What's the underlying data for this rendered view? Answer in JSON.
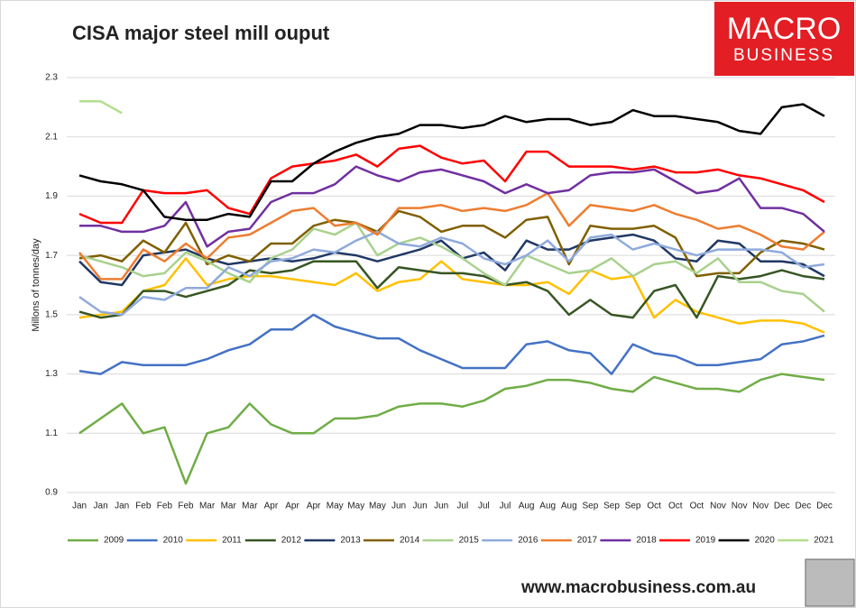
{
  "chart_data": {
    "type": "line",
    "title": "CISA major steel mill ouput",
    "y_label": "Millons of tonnes/day",
    "categories": [
      "Jan",
      "Jan",
      "Jan",
      "Feb",
      "Feb",
      "Feb",
      "Mar",
      "Mar",
      "Mar",
      "Apr",
      "Apr",
      "Apr",
      "May",
      "May",
      "May",
      "Jun",
      "Jun",
      "Jun",
      "Jul",
      "Jul",
      "Jul",
      "Aug",
      "Aug",
      "Aug",
      "Sep",
      "Sep",
      "Sep",
      "Oct",
      "Oct",
      "Oct",
      "Nov",
      "Nov",
      "Nov",
      "Dec",
      "Dec",
      "Dec"
    ],
    "ylim": [
      0.9,
      2.3
    ],
    "yticks": [
      0.9,
      1.1,
      1.3,
      1.5,
      1.7,
      1.9,
      2.1,
      2.3
    ],
    "grid": true,
    "legend": "bottom",
    "series": [
      {
        "name": "2009",
        "color": "#70ad47",
        "values": [
          1.1,
          1.15,
          1.2,
          1.1,
          1.12,
          0.93,
          1.1,
          1.12,
          1.2,
          1.13,
          1.1,
          1.1,
          1.15,
          1.15,
          1.16,
          1.19,
          1.2,
          1.2,
          1.19,
          1.21,
          1.25,
          1.26,
          1.28,
          1.28,
          1.27,
          1.25,
          1.24,
          1.29,
          1.27,
          1.25,
          1.25,
          1.24,
          1.28,
          1.3,
          1.29,
          1.28
        ]
      },
      {
        "name": "2010",
        "color": "#4472c4",
        "values": [
          1.31,
          1.3,
          1.34,
          1.33,
          1.33,
          1.33,
          1.35,
          1.38,
          1.4,
          1.45,
          1.45,
          1.5,
          1.46,
          1.44,
          1.42,
          1.42,
          1.38,
          1.35,
          1.32,
          1.32,
          1.32,
          1.4,
          1.41,
          1.38,
          1.37,
          1.3,
          1.4,
          1.37,
          1.36,
          1.33,
          1.33,
          1.34,
          1.35,
          1.4,
          1.41,
          1.43
        ]
      },
      {
        "name": "2011",
        "color": "#ffc000",
        "values": [
          1.49,
          1.5,
          1.51,
          1.58,
          1.6,
          1.69,
          1.6,
          1.62,
          1.63,
          1.63,
          1.62,
          1.61,
          1.6,
          1.64,
          1.58,
          1.61,
          1.62,
          1.68,
          1.62,
          1.61,
          1.6,
          1.6,
          1.61,
          1.57,
          1.65,
          1.62,
          1.63,
          1.49,
          1.55,
          1.51,
          1.49,
          1.47,
          1.48,
          1.48,
          1.47,
          1.44
        ]
      },
      {
        "name": "2012",
        "color": "#375623",
        "values": [
          1.51,
          1.49,
          1.5,
          1.58,
          1.58,
          1.56,
          1.58,
          1.6,
          1.65,
          1.64,
          1.65,
          1.68,
          1.68,
          1.68,
          1.59,
          1.66,
          1.65,
          1.64,
          1.64,
          1.63,
          1.6,
          1.61,
          1.58,
          1.5,
          1.55,
          1.5,
          1.49,
          1.58,
          1.6,
          1.49,
          1.63,
          1.62,
          1.63,
          1.65,
          1.63,
          1.62
        ]
      },
      {
        "name": "2013",
        "color": "#203864",
        "values": [
          1.68,
          1.61,
          1.6,
          1.7,
          1.71,
          1.72,
          1.69,
          1.67,
          1.68,
          1.69,
          1.68,
          1.69,
          1.71,
          1.7,
          1.68,
          1.7,
          1.72,
          1.75,
          1.69,
          1.71,
          1.65,
          1.75,
          1.72,
          1.72,
          1.75,
          1.76,
          1.77,
          1.75,
          1.69,
          1.68,
          1.75,
          1.74,
          1.68,
          1.68,
          1.67,
          1.63
        ]
      },
      {
        "name": "2014",
        "color": "#806000",
        "values": [
          1.69,
          1.7,
          1.68,
          1.75,
          1.71,
          1.81,
          1.67,
          1.7,
          1.68,
          1.74,
          1.74,
          1.8,
          1.82,
          1.81,
          1.78,
          1.85,
          1.83,
          1.78,
          1.8,
          1.8,
          1.76,
          1.82,
          1.83,
          1.67,
          1.8,
          1.79,
          1.79,
          1.8,
          1.76,
          1.63,
          1.64,
          1.64,
          1.71,
          1.75,
          1.74,
          1.72
        ]
      },
      {
        "name": "2015",
        "color": "#a9d18e",
        "values": [
          1.7,
          1.68,
          1.66,
          1.63,
          1.64,
          1.71,
          1.68,
          1.64,
          1.61,
          1.69,
          1.72,
          1.79,
          1.77,
          1.81,
          1.7,
          1.74,
          1.76,
          1.73,
          1.69,
          1.64,
          1.6,
          1.7,
          1.67,
          1.64,
          1.65,
          1.69,
          1.63,
          1.67,
          1.68,
          1.64,
          1.69,
          1.61,
          1.61,
          1.58,
          1.57,
          1.51
        ]
      },
      {
        "name": "2016",
        "color": "#8faadc",
        "values": [
          1.56,
          1.51,
          1.5,
          1.56,
          1.55,
          1.59,
          1.59,
          1.66,
          1.63,
          1.68,
          1.69,
          1.72,
          1.71,
          1.75,
          1.78,
          1.74,
          1.73,
          1.76,
          1.74,
          1.69,
          1.67,
          1.7,
          1.75,
          1.68,
          1.76,
          1.77,
          1.72,
          1.74,
          1.72,
          1.7,
          1.72,
          1.72,
          1.72,
          1.71,
          1.66,
          1.67
        ]
      },
      {
        "name": "2017",
        "color": "#ed7d31",
        "values": [
          1.71,
          1.62,
          1.62,
          1.72,
          1.68,
          1.74,
          1.69,
          1.76,
          1.77,
          1.81,
          1.85,
          1.86,
          1.8,
          1.81,
          1.77,
          1.86,
          1.86,
          1.87,
          1.85,
          1.86,
          1.85,
          1.87,
          1.91,
          1.8,
          1.87,
          1.86,
          1.85,
          1.87,
          1.84,
          1.82,
          1.79,
          1.8,
          1.77,
          1.73,
          1.72,
          1.78
        ]
      },
      {
        "name": "2018",
        "color": "#7030a0",
        "values": [
          1.8,
          1.8,
          1.78,
          1.78,
          1.8,
          1.88,
          1.73,
          1.78,
          1.79,
          1.88,
          1.91,
          1.91,
          1.94,
          2.0,
          1.97,
          1.95,
          1.98,
          1.99,
          1.97,
          1.95,
          1.91,
          1.94,
          1.91,
          1.92,
          1.97,
          1.98,
          1.98,
          1.99,
          1.95,
          1.91,
          1.92,
          1.96,
          1.86,
          1.86,
          1.84,
          1.78
        ]
      },
      {
        "name": "2019",
        "color": "#ff0000",
        "values": [
          1.84,
          1.81,
          1.81,
          1.92,
          1.91,
          1.91,
          1.92,
          1.86,
          1.84,
          1.96,
          2.0,
          2.01,
          2.02,
          2.04,
          2.0,
          2.06,
          2.07,
          2.03,
          2.01,
          2.02,
          1.95,
          2.05,
          2.05,
          2.0,
          2.0,
          2.0,
          1.99,
          2.0,
          1.98,
          1.98,
          1.99,
          1.97,
          1.96,
          1.94,
          1.92,
          1.88
        ]
      },
      {
        "name": "2020",
        "color": "#000000",
        "values": [
          1.97,
          1.95,
          1.94,
          1.92,
          1.83,
          1.82,
          1.82,
          1.84,
          1.83,
          1.95,
          1.95,
          2.01,
          2.05,
          2.08,
          2.1,
          2.11,
          2.14,
          2.14,
          2.13,
          2.14,
          2.17,
          2.15,
          2.16,
          2.16,
          2.14,
          2.15,
          2.19,
          2.17,
          2.17,
          2.16,
          2.15,
          2.12,
          2.11,
          2.2,
          2.21,
          2.17
        ]
      },
      {
        "name": "2021",
        "color": "#b4de8c",
        "values": [
          2.22,
          2.22,
          2.18,
          null,
          null,
          null,
          null,
          null,
          null,
          null,
          null,
          null,
          null,
          null,
          null,
          null,
          null,
          null,
          null,
          null,
          null,
          null,
          null,
          null,
          null,
          null,
          null,
          null,
          null,
          null,
          null,
          null,
          null,
          null,
          null,
          null
        ]
      }
    ]
  },
  "logo": {
    "line1": "MACRO",
    "line2": "BUSINESS"
  },
  "footer": "www.macrobusiness.com.au"
}
